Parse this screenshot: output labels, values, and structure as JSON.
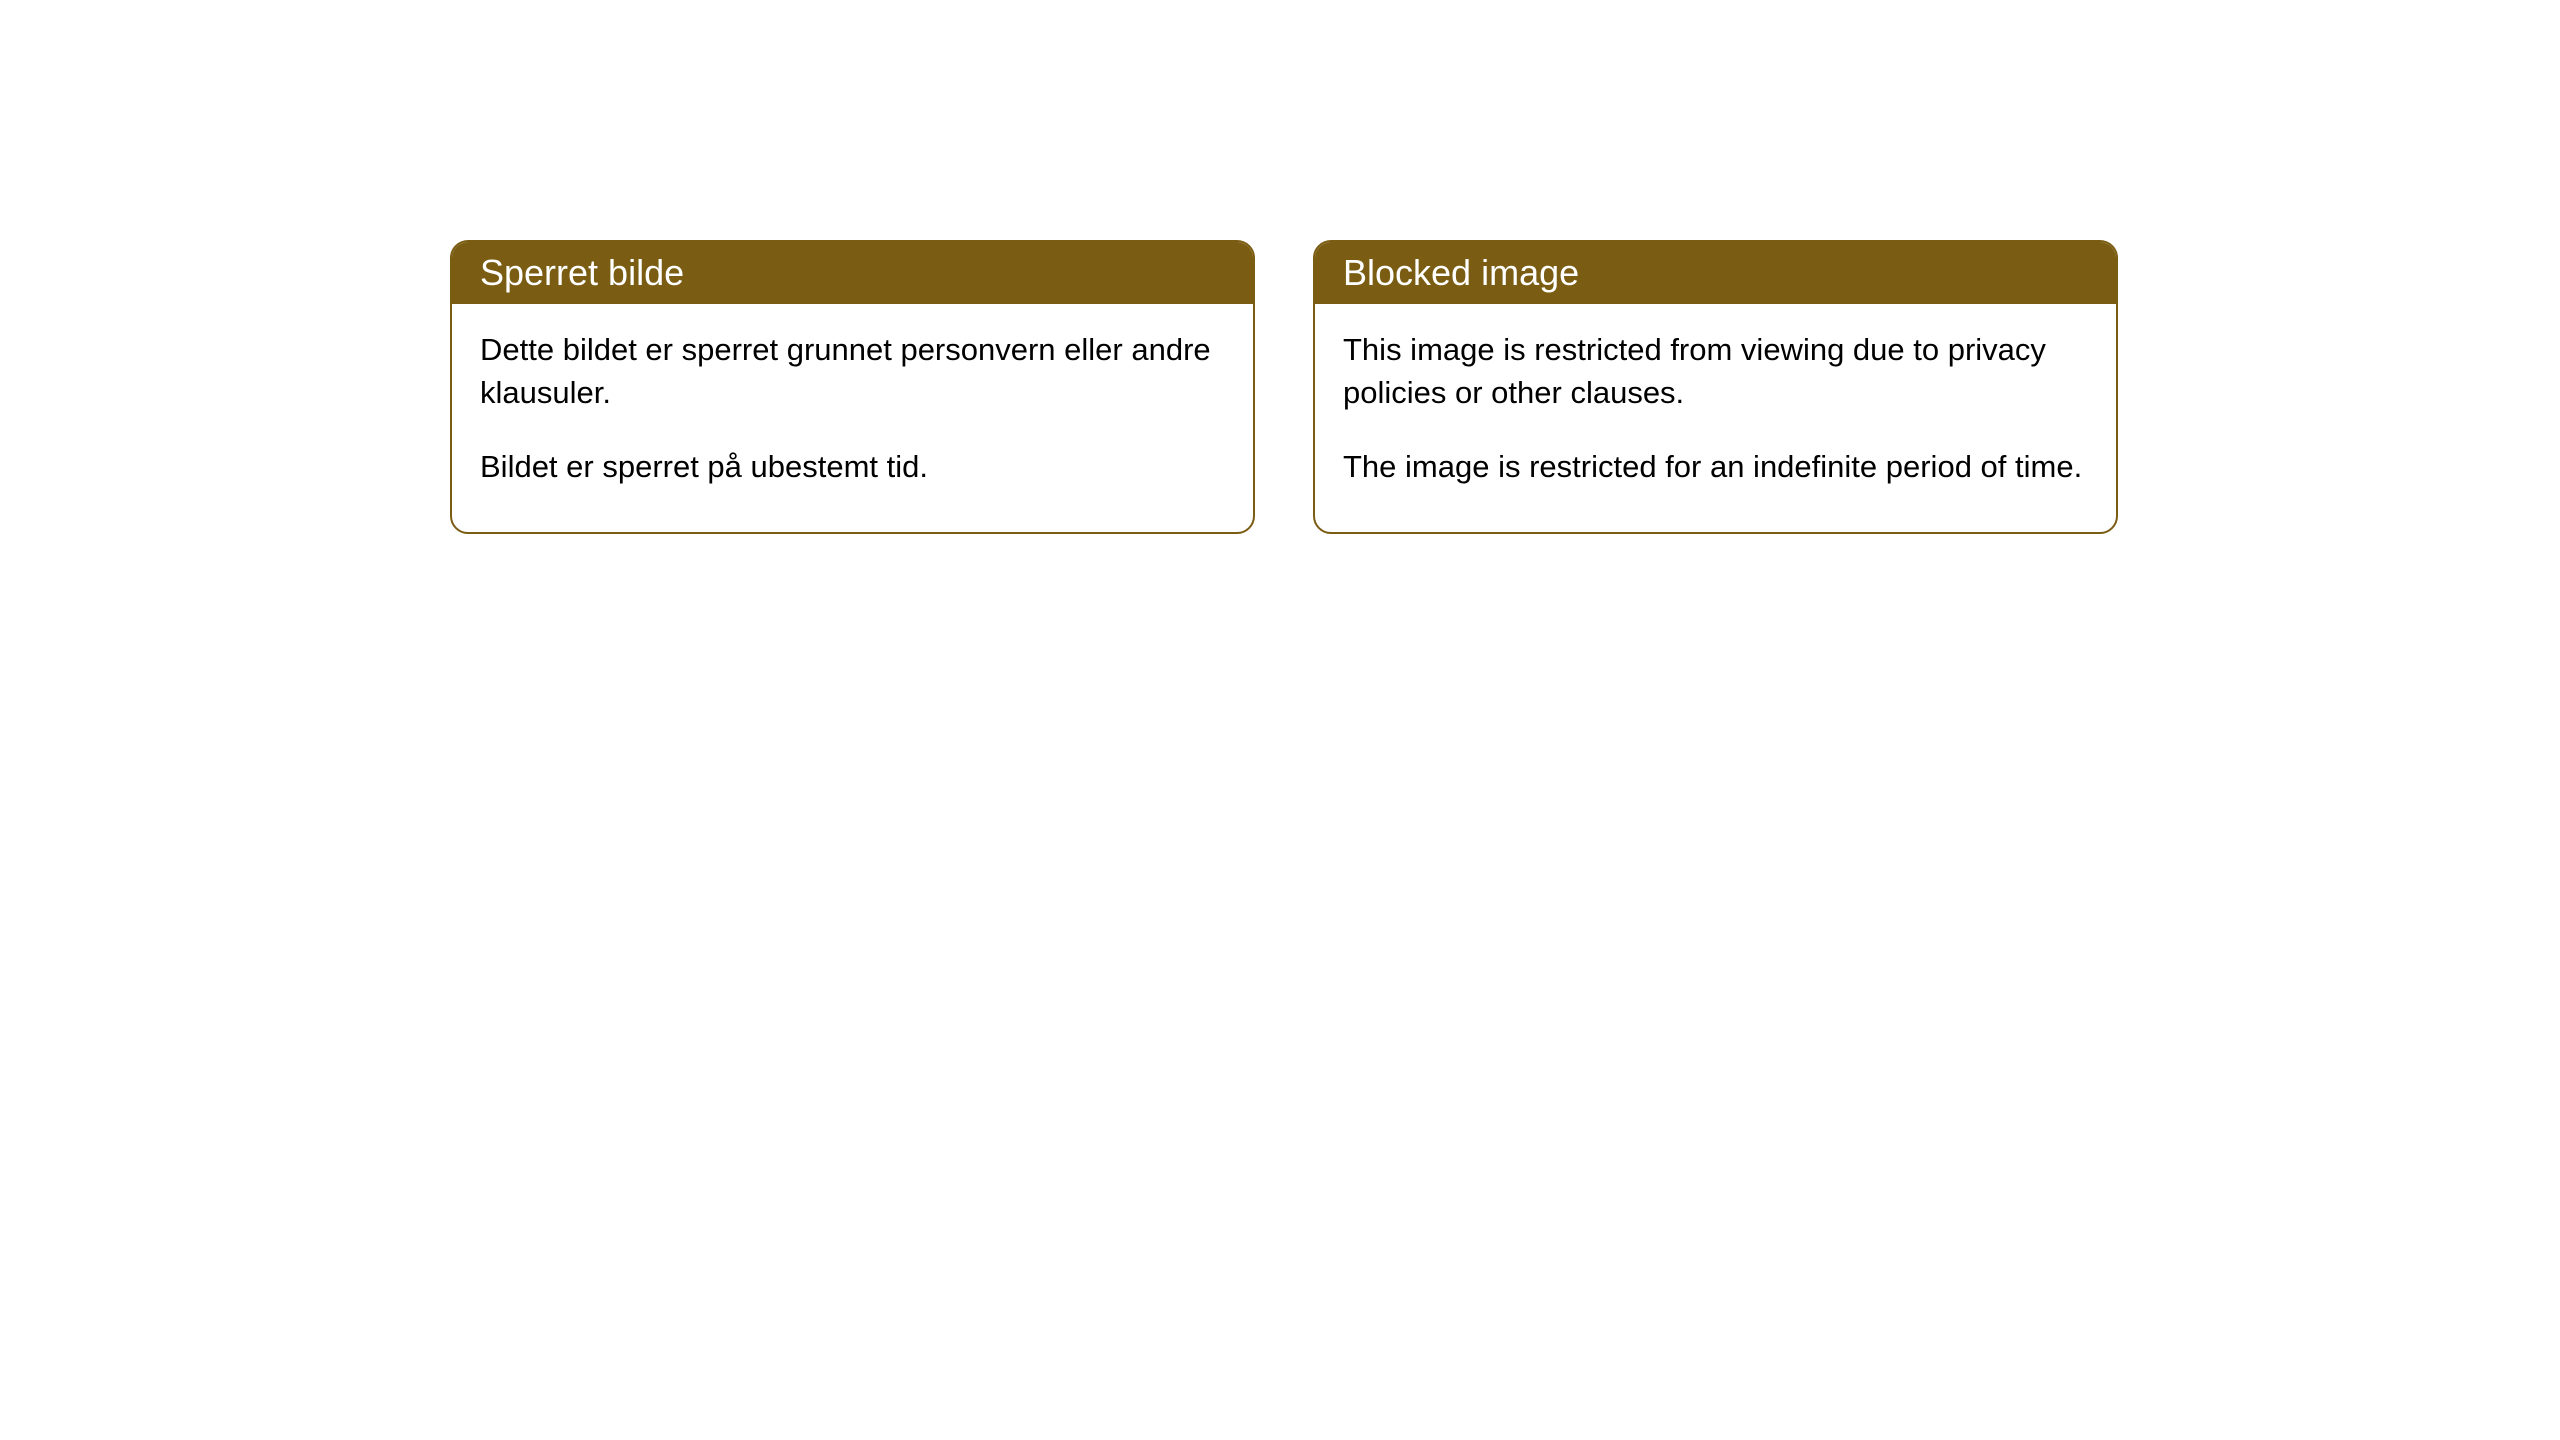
{
  "styling": {
    "header_background_color": "#7a5d13",
    "header_text_color": "#ffffff",
    "border_color": "#7a5d13",
    "border_radius": 18,
    "card_background_color": "#ffffff",
    "page_background_color": "#ffffff",
    "header_fontsize": 36,
    "body_fontsize": 31,
    "body_text_color": "#000000"
  },
  "cards": {
    "left": {
      "title": "Sperret bilde",
      "paragraph1": "Dette bildet er sperret grunnet personvern eller andre klausuler.",
      "paragraph2": "Bildet er sperret på ubestemt tid."
    },
    "right": {
      "title": "Blocked image",
      "paragraph1": "This image is restricted from viewing due to privacy policies or other clauses.",
      "paragraph2": "The image is restricted for an indefinite period of time."
    }
  }
}
